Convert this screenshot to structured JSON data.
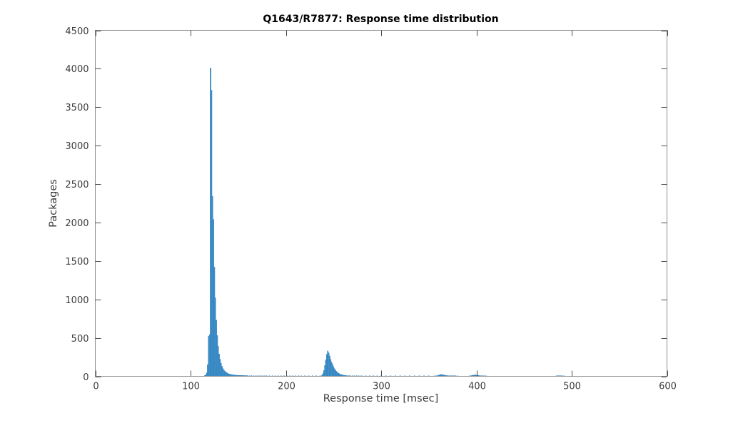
{
  "style": {
    "background": "#ffffff",
    "bar_fill": "#4494ce",
    "bar_edge": "#2878b5",
    "frame_color": "#8c8c8c",
    "tick_color": "#4a4a4a",
    "tick_label_color": "#3d3d3d",
    "axis_label_color": "#3d3d3d",
    "title_color": "#000000"
  },
  "chart_data": {
    "type": "bar",
    "title": "Q1643/R7877: Response time distribution",
    "xlabel": "Response time [msec]",
    "ylabel": "Packages",
    "xlim": [
      0,
      600
    ],
    "ylim": [
      0,
      4500
    ],
    "xticks": [
      0,
      100,
      200,
      300,
      400,
      500,
      600
    ],
    "yticks": [
      0,
      500,
      1000,
      1500,
      2000,
      2500,
      3000,
      3500,
      4000,
      4500
    ],
    "grid": false,
    "legend": null,
    "box": true,
    "ticks_direction": "in",
    "bin_width_msec": 1,
    "bins": [
      [
        115,
        10
      ],
      [
        116,
        20
      ],
      [
        117,
        45
      ],
      [
        118,
        150
      ],
      [
        119,
        520
      ],
      [
        120,
        540
      ],
      [
        121,
        4010
      ],
      [
        122,
        3720
      ],
      [
        123,
        2340
      ],
      [
        124,
        2040
      ],
      [
        125,
        1420
      ],
      [
        126,
        1020
      ],
      [
        127,
        730
      ],
      [
        128,
        530
      ],
      [
        129,
        390
      ],
      [
        130,
        290
      ],
      [
        131,
        220
      ],
      [
        132,
        170
      ],
      [
        133,
        130
      ],
      [
        134,
        100
      ],
      [
        135,
        82
      ],
      [
        136,
        66
      ],
      [
        137,
        55
      ],
      [
        138,
        46
      ],
      [
        139,
        38
      ],
      [
        140,
        32
      ],
      [
        141,
        28
      ],
      [
        142,
        25
      ],
      [
        143,
        22
      ],
      [
        144,
        20
      ],
      [
        145,
        18
      ],
      [
        146,
        17
      ],
      [
        147,
        15
      ],
      [
        148,
        14
      ],
      [
        149,
        13
      ],
      [
        150,
        12
      ],
      [
        151,
        12
      ],
      [
        152,
        11
      ],
      [
        153,
        11
      ],
      [
        154,
        10
      ],
      [
        155,
        10
      ],
      [
        156,
        10
      ],
      [
        157,
        9
      ],
      [
        158,
        9
      ],
      [
        159,
        9
      ],
      [
        160,
        8
      ],
      [
        162,
        8
      ],
      [
        164,
        8
      ],
      [
        166,
        7
      ],
      [
        168,
        7
      ],
      [
        170,
        7
      ],
      [
        172,
        6
      ],
      [
        174,
        6
      ],
      [
        176,
        6
      ],
      [
        178,
        5
      ],
      [
        180,
        5
      ],
      [
        183,
        5
      ],
      [
        186,
        4
      ],
      [
        189,
        4
      ],
      [
        192,
        4
      ],
      [
        195,
        4
      ],
      [
        198,
        3
      ],
      [
        201,
        3
      ],
      [
        204,
        3
      ],
      [
        207,
        3
      ],
      [
        210,
        3
      ],
      [
        213,
        2
      ],
      [
        216,
        2
      ],
      [
        220,
        2
      ],
      [
        224,
        2
      ],
      [
        228,
        2
      ],
      [
        232,
        2
      ],
      [
        236,
        3
      ],
      [
        238,
        15
      ],
      [
        239,
        35
      ],
      [
        240,
        75
      ],
      [
        241,
        140
      ],
      [
        242,
        215
      ],
      [
        243,
        285
      ],
      [
        244,
        330
      ],
      [
        245,
        305
      ],
      [
        246,
        265
      ],
      [
        247,
        220
      ],
      [
        248,
        185
      ],
      [
        249,
        155
      ],
      [
        250,
        125
      ],
      [
        251,
        100
      ],
      [
        252,
        80
      ],
      [
        253,
        65
      ],
      [
        254,
        52
      ],
      [
        255,
        42
      ],
      [
        256,
        34
      ],
      [
        257,
        28
      ],
      [
        258,
        23
      ],
      [
        259,
        19
      ],
      [
        260,
        16
      ],
      [
        261,
        13
      ],
      [
        262,
        11
      ],
      [
        263,
        10
      ],
      [
        264,
        8
      ],
      [
        265,
        7
      ],
      [
        266,
        6
      ],
      [
        267,
        5
      ],
      [
        268,
        5
      ],
      [
        270,
        4
      ],
      [
        272,
        4
      ],
      [
        274,
        3
      ],
      [
        276,
        3
      ],
      [
        278,
        3
      ],
      [
        280,
        2
      ],
      [
        284,
        2
      ],
      [
        288,
        2
      ],
      [
        292,
        2
      ],
      [
        296,
        2
      ],
      [
        300,
        2
      ],
      [
        305,
        2
      ],
      [
        310,
        1
      ],
      [
        315,
        1
      ],
      [
        320,
        1
      ],
      [
        325,
        1
      ],
      [
        330,
        1
      ],
      [
        335,
        1
      ],
      [
        340,
        1
      ],
      [
        345,
        1
      ],
      [
        350,
        1
      ],
      [
        356,
        2
      ],
      [
        358,
        5
      ],
      [
        359,
        8
      ],
      [
        360,
        12
      ],
      [
        361,
        17
      ],
      [
        362,
        21
      ],
      [
        363,
        24
      ],
      [
        364,
        22
      ],
      [
        365,
        19
      ],
      [
        366,
        16
      ],
      [
        367,
        13
      ],
      [
        368,
        11
      ],
      [
        369,
        9
      ],
      [
        370,
        8
      ],
      [
        371,
        7
      ],
      [
        372,
        6
      ],
      [
        373,
        5
      ],
      [
        374,
        4
      ],
      [
        375,
        4
      ],
      [
        376,
        3
      ],
      [
        377,
        3
      ],
      [
        378,
        2
      ],
      [
        380,
        2
      ],
      [
        393,
        4
      ],
      [
        394,
        6
      ],
      [
        395,
        9
      ],
      [
        396,
        12
      ],
      [
        397,
        15
      ],
      [
        398,
        17
      ],
      [
        399,
        18
      ],
      [
        400,
        16
      ],
      [
        401,
        13
      ],
      [
        402,
        11
      ],
      [
        403,
        9
      ],
      [
        404,
        7
      ],
      [
        405,
        6
      ],
      [
        406,
        5
      ],
      [
        407,
        4
      ],
      [
        408,
        3
      ],
      [
        410,
        2
      ],
      [
        484,
        3
      ],
      [
        485,
        4
      ],
      [
        486,
        5
      ],
      [
        487,
        4
      ],
      [
        488,
        4
      ],
      [
        489,
        3
      ],
      [
        490,
        3
      ],
      [
        492,
        2
      ]
    ]
  }
}
